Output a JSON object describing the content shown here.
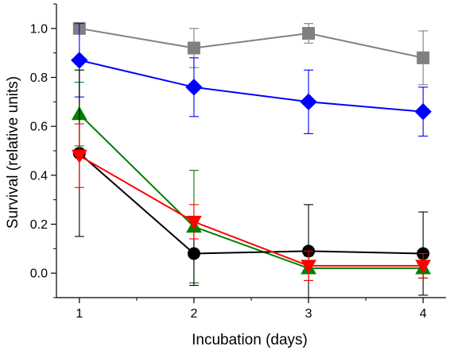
{
  "chart_data": {
    "type": "line",
    "xlabel": "Incubation (days)",
    "ylabel": "Survival (relative units)",
    "x": [
      1,
      2,
      3,
      4
    ],
    "xlim": [
      0.8,
      4.2
    ],
    "ylim": [
      -0.1,
      1.1
    ],
    "xticks": [
      1,
      2,
      3,
      4
    ],
    "yticks": [
      0.0,
      0.2,
      0.4,
      0.6,
      0.8,
      1.0
    ],
    "ytick_labels": [
      "0.0",
      "0.2",
      "0.4",
      "0.6",
      "0.8",
      "1.0"
    ],
    "grid": false,
    "series": [
      {
        "color": "#808080",
        "marker": "square",
        "values": [
          1.0,
          0.92,
          0.98,
          0.88
        ],
        "errors": [
          0.02,
          0.08,
          0.04,
          0.11
        ]
      },
      {
        "color": "#0000ff",
        "marker": "diamond",
        "values": [
          0.87,
          0.76,
          0.7,
          0.66
        ],
        "errors": [
          0.15,
          0.12,
          0.13,
          0.1
        ]
      },
      {
        "color": "#008000",
        "marker": "triangle-up",
        "values": [
          0.65,
          0.19,
          0.02,
          0.02
        ],
        "errors": [
          0.13,
          0.23,
          0.05,
          0.04
        ]
      },
      {
        "color": "#000000",
        "marker": "circle",
        "values": [
          0.49,
          0.08,
          0.09,
          0.08
        ],
        "errors": [
          0.34,
          0.13,
          0.19,
          0.17
        ]
      },
      {
        "color": "#ff0000",
        "marker": "triangle-down",
        "values": [
          0.48,
          0.21,
          0.03,
          0.03
        ],
        "errors": [
          0.13,
          0.07,
          0.06,
          0.05
        ]
      }
    ]
  }
}
